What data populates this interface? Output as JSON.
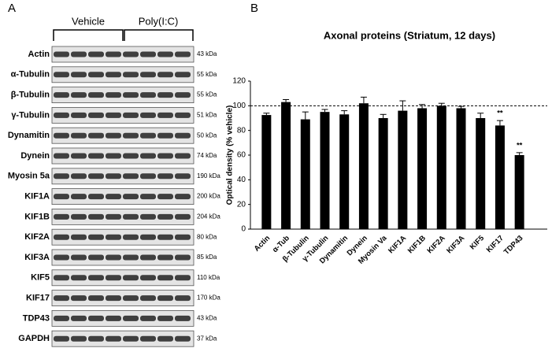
{
  "panel_a": {
    "label": "A",
    "groups": [
      "Vehicle",
      "Poly(I:C)"
    ],
    "rows": [
      {
        "protein": "Actin",
        "size": "43 kDa"
      },
      {
        "protein": "α-Tubulin",
        "size": "55 kDa"
      },
      {
        "protein": "β-Tubulin",
        "size": "55 kDa"
      },
      {
        "protein": "γ-Tubulin",
        "size": "51 kDa"
      },
      {
        "protein": "Dynamitin",
        "size": "50 kDa"
      },
      {
        "protein": "Dynein",
        "size": "74 kDa"
      },
      {
        "protein": "Myosin 5a",
        "size": "190 kDa"
      },
      {
        "protein": "KIF1A",
        "size": "200 kDa"
      },
      {
        "protein": "KIF1B",
        "size": "204 kDa"
      },
      {
        "protein": "KIF2A",
        "size": "80 kDa"
      },
      {
        "protein": "KIF3A",
        "size": "85 kDa"
      },
      {
        "protein": "KIF5",
        "size": "110 kDa"
      },
      {
        "protein": "KIF17",
        "size": "170 kDa"
      },
      {
        "protein": "TDP43",
        "size": "43 kDa"
      },
      {
        "protein": "GAPDH",
        "size": "37 kDa"
      }
    ]
  },
  "panel_b": {
    "label": "B"
  },
  "chart_data": {
    "type": "bar",
    "title": "Axonal proteins (Striatum, 12 days)",
    "y_label": "Optical density (% vehicle)",
    "categories": [
      "Actin",
      "α-Tub",
      "β-Tubulin",
      "γ-Tubulin",
      "Dynamitin",
      "Dynein",
      "Myosin Va",
      "KIF1A",
      "KIF1B",
      "KIF2A",
      "KIF3A",
      "KIF5",
      "KIF17",
      "TDP43"
    ],
    "values": [
      92.5,
      103,
      89,
      95,
      93,
      102,
      90,
      96,
      98,
      100,
      98,
      90,
      84,
      60
    ],
    "errors": [
      1.5,
      2,
      6,
      2,
      3,
      5,
      3,
      8,
      3,
      2,
      1.5,
      4,
      4,
      2
    ],
    "significance": [
      null,
      null,
      null,
      null,
      null,
      null,
      null,
      null,
      null,
      null,
      null,
      null,
      "**",
      "**"
    ],
    "color": "#000000",
    "ylim": [
      0,
      120
    ],
    "yticks": [
      0,
      20,
      40,
      60,
      80,
      100,
      120
    ],
    "reference_line": 100
  }
}
